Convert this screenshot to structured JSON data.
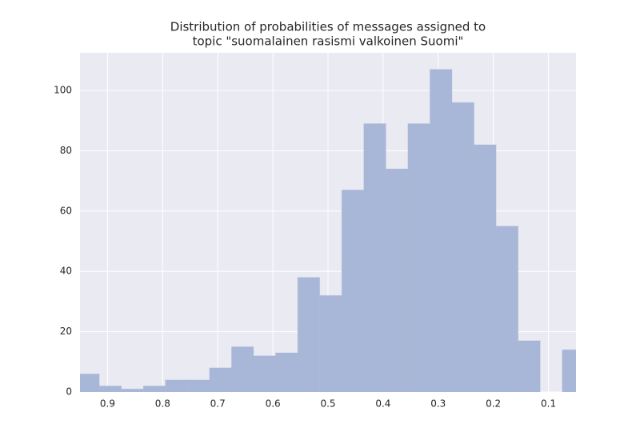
{
  "chart_data": {
    "type": "histogram",
    "title": [
      "Distribution of probabilities of messages assigned to",
      "topic \"suomalainen rasismi valkoinen Suomi\""
    ],
    "bins": [
      0.955,
      0.915,
      0.875,
      0.835,
      0.795,
      0.755,
      0.715,
      0.675,
      0.635,
      0.595,
      0.555,
      0.515,
      0.475,
      0.435,
      0.395,
      0.355,
      0.315,
      0.275,
      0.235,
      0.195,
      0.155,
      0.115,
      0.075,
      0.035
    ],
    "values": [
      6,
      2,
      1,
      2,
      4,
      4,
      8,
      15,
      12,
      13,
      38,
      32,
      67,
      89,
      74,
      89,
      107,
      96,
      82,
      55,
      17,
      0,
      14
    ],
    "color": "#a8b7d7",
    "xlim": [
      0.95,
      0.05
    ],
    "xticks": [
      0.9,
      0.8,
      0.7,
      0.6,
      0.5,
      0.4,
      0.3,
      0.2,
      0.1
    ],
    "ylim": [
      0,
      112.5
    ],
    "yticks": [
      0,
      20,
      40,
      60,
      80,
      100
    ],
    "grid": true
  }
}
